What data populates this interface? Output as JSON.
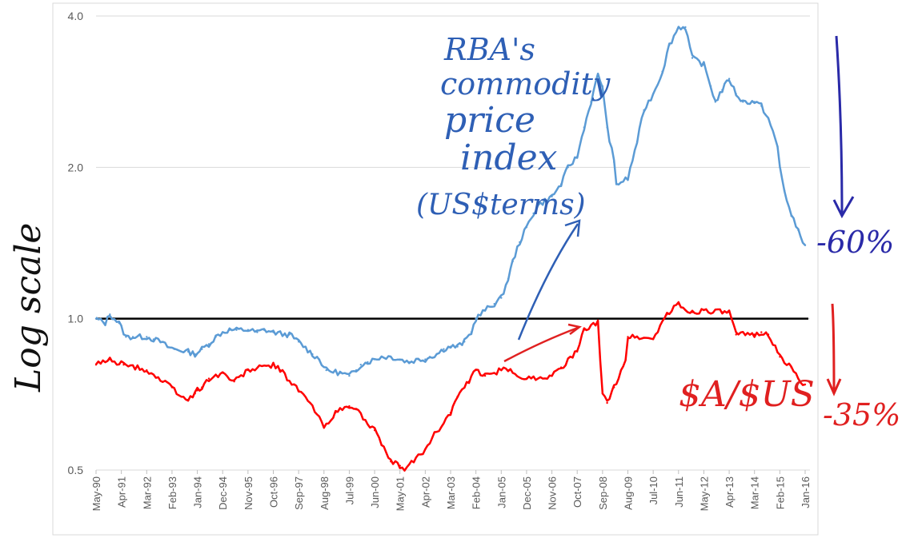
{
  "chart_data": {
    "type": "line",
    "scale": "log",
    "ylim": [
      0.5,
      4.0
    ],
    "y_ticks": [
      {
        "value": 0.5,
        "label": "0.5"
      },
      {
        "value": 1.0,
        "label": "1.0"
      },
      {
        "value": 2.0,
        "label": "2.0"
      },
      {
        "value": 4.0,
        "label": "4.0"
      }
    ],
    "x_tick_labels": [
      "May-90",
      "Apr-91",
      "Mar-92",
      "Feb-93",
      "Jan-94",
      "Dec-94",
      "Nov-95",
      "Oct-96",
      "Sep-97",
      "Aug-98",
      "Jul-99",
      "Jun-00",
      "May-01",
      "Apr-02",
      "Mar-03",
      "Feb-04",
      "Jan-05",
      "Dec-05",
      "Nov-06",
      "Oct-07",
      "Sep-08",
      "Aug-09",
      "Jul-10",
      "Jun-11",
      "May-12",
      "Apr-13",
      "Mar-14",
      "Feb-15",
      "Jan-16"
    ],
    "reference_line": 1.0,
    "grid": "horizontal",
    "series": [
      {
        "color": "#5b9bd5",
        "x": [
          "May-90",
          "Sep-90",
          "Nov-90",
          "Mar-91",
          "Jun-91",
          "Sep-91",
          "Mar-92",
          "Jun-92",
          "Sep-92",
          "Dec-92",
          "Mar-93",
          "Sep-93",
          "Dec-93",
          "Mar-94",
          "Jun-94",
          "Sep-94",
          "Dec-94",
          "Mar-95",
          "Jun-95",
          "Nov-95",
          "Mar-96",
          "Jun-96",
          "Oct-96",
          "Mar-97",
          "May-97",
          "Sep-97",
          "Mar-98",
          "Jun-98",
          "Sep-98",
          "Mar-99",
          "Jul-99",
          "Oct-99",
          "Dec-99",
          "Mar-00",
          "Jun-00",
          "Sep-00",
          "Jan-01",
          "May-01",
          "Sep-01",
          "Jan-02",
          "Apr-02",
          "Jun-02",
          "Sep-02",
          "Dec-02",
          "Mar-03",
          "Jun-03",
          "Sep-03",
          "Dec-03",
          "Feb-04",
          "Jun-04",
          "Oct-04",
          "Jan-05",
          "Apr-05",
          "Jun-05",
          "Sep-05",
          "Dec-05",
          "Mar-06",
          "May-06",
          "Nov-06",
          "Mar-07",
          "Jun-07",
          "Oct-07",
          "Jan-08",
          "Apr-08",
          "Jul-08",
          "Sep-08",
          "Nov-08",
          "Feb-09",
          "Mar-09",
          "Aug-09",
          "Dec-09",
          "Mar-10",
          "Jul-10",
          "Nov-10",
          "Feb-11",
          "Jun-11",
          "Sep-11",
          "Dec-11",
          "May-12",
          "Aug-12",
          "Oct-12",
          "Jan-13",
          "Apr-13",
          "Jul-13",
          "Oct-13",
          "Mar-14",
          "Jun-14",
          "Sep-14",
          "Jan-15",
          "Feb-15",
          "Apr-15",
          "Jul-15",
          "Oct-15",
          "Jan-16"
        ],
        "y": [
          1.0,
          0.98,
          1.02,
          0.98,
          0.92,
          0.92,
          0.92,
          0.91,
          0.9,
          0.88,
          0.87,
          0.86,
          0.85,
          0.87,
          0.89,
          0.92,
          0.94,
          0.95,
          0.95,
          0.95,
          0.94,
          0.95,
          0.94,
          0.93,
          0.93,
          0.9,
          0.85,
          0.83,
          0.79,
          0.78,
          0.77,
          0.79,
          0.81,
          0.82,
          0.83,
          0.84,
          0.84,
          0.83,
          0.82,
          0.83,
          0.83,
          0.84,
          0.85,
          0.87,
          0.88,
          0.88,
          0.9,
          0.94,
          1.0,
          1.04,
          1.07,
          1.1,
          1.2,
          1.3,
          1.42,
          1.52,
          1.62,
          1.68,
          1.75,
          1.85,
          2.0,
          2.1,
          2.4,
          2.7,
          3.05,
          2.9,
          2.4,
          2.05,
          1.85,
          1.9,
          2.25,
          2.6,
          2.8,
          3.1,
          3.5,
          3.8,
          3.8,
          3.3,
          3.2,
          2.9,
          2.7,
          2.85,
          3.0,
          2.8,
          2.7,
          2.7,
          2.65,
          2.5,
          2.2,
          2.0,
          1.8,
          1.6,
          1.5,
          1.4
        ]
      },
      {
        "color": "#ff0000",
        "x": [
          "May-90",
          "Nov-90",
          "May-91",
          "Mar-92",
          "Feb-93",
          "Jun-93",
          "Sep-93",
          "Dec-93",
          "Mar-94",
          "Jan-94",
          "Jun-94",
          "Dec-94",
          "May-95",
          "Nov-95",
          "Oct-96",
          "Jan-97",
          "Sep-97",
          "Feb-98",
          "Aug-98",
          "Jan-99",
          "Jul-99",
          "Oct-99",
          "Jun-00",
          "Sep-00",
          "Jan-01",
          "May-01",
          "Jul-01",
          "Apr-02",
          "Jul-02",
          "Mar-03",
          "Jun-03",
          "Nov-03",
          "Feb-04",
          "Jun-04",
          "Jan-05",
          "Apr-05",
          "Dec-05",
          "Nov-06",
          "Mar-07",
          "Oct-07",
          "Jan-08",
          "Jul-08",
          "Sep-08",
          "Nov-08",
          "Feb-09",
          "Jul-09",
          "Aug-09",
          "Dec-09",
          "Jul-10",
          "Oct-10",
          "Jan-11",
          "Jun-11",
          "Sep-11",
          "Dec-11",
          "May-12",
          "Jan-13",
          "Apr-13",
          "Jul-13",
          "Mar-14",
          "Jun-14",
          "Sep-14",
          "Feb-15",
          "Jul-15",
          "Oct-15",
          "Jan-16"
        ],
        "y": [
          0.81,
          0.83,
          0.81,
          0.79,
          0.73,
          0.7,
          0.69,
          0.71,
          0.73,
          0.72,
          0.76,
          0.78,
          0.75,
          0.79,
          0.81,
          0.79,
          0.72,
          0.68,
          0.61,
          0.65,
          0.67,
          0.66,
          0.6,
          0.56,
          0.52,
          0.51,
          0.5,
          0.55,
          0.58,
          0.65,
          0.7,
          0.75,
          0.79,
          0.77,
          0.79,
          0.79,
          0.76,
          0.77,
          0.8,
          0.86,
          0.95,
          0.98,
          0.71,
          0.68,
          0.73,
          0.83,
          0.92,
          0.92,
          0.91,
          0.97,
          1.02,
          1.07,
          1.04,
          1.03,
          1.04,
          1.03,
          1.03,
          0.93,
          0.93,
          0.94,
          0.93,
          0.84,
          0.8,
          0.76,
          0.74
        ]
      }
    ],
    "annotations": {
      "commodity_label": [
        "RBA's",
        "commodity",
        "price",
        "index",
        "(US$terms)"
      ],
      "aud_label": "$A/$US",
      "commodity_change": "-60%",
      "aud_change": "-35%",
      "ylabel": "Log scale"
    }
  },
  "colors": {
    "commodity_line": "#5b9bd5",
    "aud_line": "#ff0000",
    "commodity_ink": "#2e5fb5",
    "aud_ink": "#e02020",
    "change_ink": "#2a2aa8",
    "reference": "#000000",
    "grid": "#d9d9d9"
  }
}
